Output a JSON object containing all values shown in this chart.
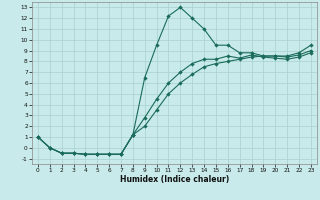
{
  "xlabel": "Humidex (Indice chaleur)",
  "bg_color": "#c8eaea",
  "grid_color": "#a8d0ce",
  "line_color": "#1a6b5a",
  "xlim": [
    -0.5,
    23.5
  ],
  "ylim": [
    -1.5,
    13.5
  ],
  "xticks": [
    0,
    1,
    2,
    3,
    4,
    5,
    6,
    7,
    8,
    9,
    10,
    11,
    12,
    13,
    14,
    15,
    16,
    17,
    18,
    19,
    20,
    21,
    22,
    23
  ],
  "yticks": [
    -1,
    0,
    1,
    2,
    3,
    4,
    5,
    6,
    7,
    8,
    9,
    10,
    11,
    12,
    13
  ],
  "line1_x": [
    0,
    1,
    2,
    3,
    4,
    5,
    6,
    7,
    8,
    9,
    10,
    11,
    12,
    13,
    14,
    15,
    16,
    17,
    18,
    19,
    20,
    21,
    22,
    23
  ],
  "line1_y": [
    1,
    0,
    -0.5,
    -0.5,
    -0.6,
    -0.6,
    -0.6,
    -0.6,
    1.2,
    6.5,
    9.5,
    12.2,
    13.0,
    12.0,
    11.0,
    9.5,
    9.5,
    8.8,
    8.8,
    8.5,
    8.5,
    8.5,
    8.8,
    9.5
  ],
  "line2_x": [
    0,
    1,
    2,
    3,
    4,
    5,
    6,
    7,
    8,
    9,
    10,
    11,
    12,
    13,
    14,
    15,
    16,
    17,
    18,
    19,
    20,
    21,
    22,
    23
  ],
  "line2_y": [
    1,
    0,
    -0.5,
    -0.5,
    -0.6,
    -0.6,
    -0.6,
    -0.6,
    1.2,
    2.0,
    3.5,
    5.0,
    6.0,
    6.8,
    7.5,
    7.8,
    8.0,
    8.2,
    8.4,
    8.5,
    8.5,
    8.4,
    8.6,
    9.0
  ],
  "line3_x": [
    0,
    1,
    2,
    3,
    4,
    5,
    6,
    7,
    8,
    9,
    10,
    11,
    12,
    13,
    14,
    15,
    16,
    17,
    18,
    19,
    20,
    21,
    22,
    23
  ],
  "line3_y": [
    1,
    0,
    -0.5,
    -0.5,
    -0.6,
    -0.6,
    -0.6,
    -0.6,
    1.2,
    2.8,
    4.5,
    6.0,
    7.0,
    7.8,
    8.2,
    8.2,
    8.5,
    8.3,
    8.6,
    8.4,
    8.3,
    8.2,
    8.4,
    8.8
  ]
}
